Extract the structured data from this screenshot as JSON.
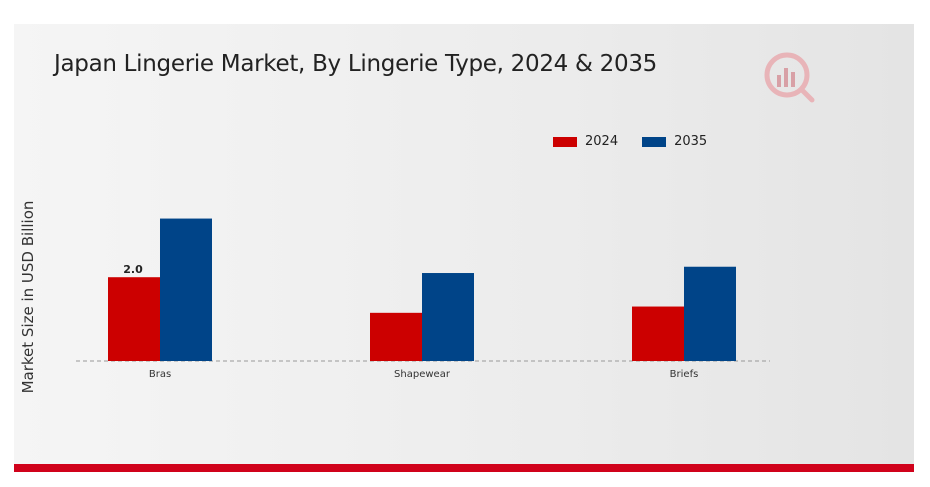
{
  "title": "Japan Lingerie Market, By Lingerie Type, 2024 & 2035",
  "colors": {
    "series_2024": "#cc0000",
    "series_2035": "#004488",
    "accent": "#d0021b"
  },
  "logo": {
    "icon": "chart-logo-icon"
  },
  "chart_data": {
    "type": "bar",
    "title": "Japan Lingerie Market, By Lingerie Type, 2024 & 2035",
    "xlabel": "",
    "ylabel": "Market Size in USD Billion",
    "categories": [
      "Bras",
      "Shapewear",
      "Briefs"
    ],
    "series": [
      {
        "name": "2024",
        "values": [
          2.0,
          1.15,
          1.3
        ],
        "color": "#cc0000"
      },
      {
        "name": "2035",
        "values": [
          3.4,
          2.1,
          2.25
        ],
        "color": "#004488"
      }
    ],
    "data_labels": [
      {
        "series": "2024",
        "category": "Bras",
        "text": "2.0"
      }
    ],
    "ylim": [
      0,
      4.0
    ],
    "grid": false,
    "legend": "top-right"
  }
}
